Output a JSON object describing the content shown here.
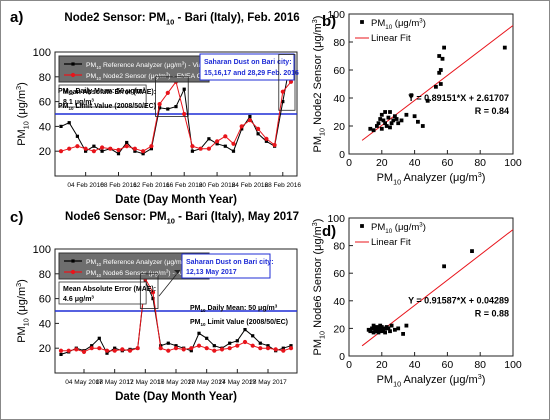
{
  "chart_data": [
    {
      "panel": "a)",
      "type": "line",
      "title": "Node2 Sensor: PM10 - Bari (Italy), Feb. 2016",
      "xlabel": "Date (Day Month Year)",
      "ylabel": "PM10 (μg/m3)",
      "ylim": [
        0,
        100
      ],
      "yticks": [
        20,
        40,
        60,
        80,
        100
      ],
      "x": [
        "01 Feb 2016",
        "02 Feb 2016",
        "03 Feb 2016",
        "04 Feb 2016",
        "05 Feb 2016",
        "06 Feb 2016",
        "07 Feb 2016",
        "08 Feb 2016",
        "09 Feb 2016",
        "10 Feb 2016",
        "11 Feb 2016",
        "12 Feb 2016",
        "13 Feb 2016",
        "14 Feb 2016",
        "15 Feb 2016",
        "16 Feb 2016",
        "17 Feb 2016",
        "18 Feb 2016",
        "19 Feb 2016",
        "20 Feb 2016",
        "21 Feb 2016",
        "22 Feb 2016",
        "23 Feb 2016",
        "24 Feb 2016",
        "25 Feb 2016",
        "26 Feb 2016",
        "27 Feb 2016",
        "28 Feb 2016",
        "29 Feb 2016"
      ],
      "xtick_labels": [
        "04 Feb 2016",
        "08 Feb 2016",
        "12 Feb 2016",
        "16 Feb 2016",
        "20 Feb 2016",
        "24 Feb 2016",
        "28 Feb 2016"
      ],
      "xtick_index": [
        3,
        7,
        11,
        15,
        19,
        23,
        27
      ],
      "series": [
        {
          "name": "PM10 Reference Analyzer (μg/m3) - Via Caldarola, Bari",
          "color": "#000000",
          "values": [
            40,
            43,
            32,
            20,
            24,
            20,
            22,
            18,
            27,
            20,
            18,
            22,
            55,
            54,
            56,
            70,
            20,
            22,
            30,
            26,
            24,
            20,
            38,
            48,
            34,
            28,
            24,
            60,
            95
          ]
        },
        {
          "name": "PM10 Node2 Sensor (μg/m3) - ENEA Office, Bari",
          "color": "#e8141b",
          "values": [
            20,
            22,
            24,
            22,
            20,
            23,
            22,
            21,
            24,
            22,
            20,
            24,
            58,
            67,
            76,
            50,
            24,
            22,
            22,
            28,
            32,
            26,
            40,
            45,
            38,
            30,
            25,
            68,
            76
          ]
        }
      ],
      "mae_label": "Mean Absolute Error (MAE):",
      "mae_value": "8.1 μg/m3",
      "daily_mean_label": "PM10 Daily Mean: 50 μg/m3",
      "limit_label": "PM10 Limit Value (2008/50/EC)",
      "limit_value": 50,
      "dust_note": "Saharan Dust on Bari city: 15,16,17 and 28,29 Feb. 2016"
    },
    {
      "panel": "b)",
      "type": "scatter",
      "xlabel": "PM10 Analyzer (μg/m3)",
      "ylabel": "PM10 Node2 Sensor (μg/m3)",
      "xlim": [
        0,
        100
      ],
      "ylim": [
        0,
        100
      ],
      "xticks": [
        0,
        20,
        40,
        60,
        80,
        100
      ],
      "yticks": [
        0,
        20,
        40,
        60,
        80,
        100
      ],
      "points_name": "PM10 (μg/m3)",
      "fit_name": "Linear Fit",
      "points": [
        [
          13,
          18
        ],
        [
          15,
          17
        ],
        [
          17,
          20
        ],
        [
          18,
          22
        ],
        [
          19,
          25
        ],
        [
          20,
          28
        ],
        [
          20,
          18
        ],
        [
          21,
          24
        ],
        [
          22,
          30
        ],
        [
          22,
          22
        ],
        [
          23,
          20
        ],
        [
          24,
          26
        ],
        [
          25,
          30
        ],
        [
          25,
          19
        ],
        [
          26,
          22
        ],
        [
          27,
          24
        ],
        [
          28,
          27
        ],
        [
          29,
          25
        ],
        [
          30,
          22
        ],
        [
          32,
          24
        ],
        [
          35,
          28
        ],
        [
          38,
          42
        ],
        [
          40,
          27
        ],
        [
          42,
          23
        ],
        [
          45,
          20
        ],
        [
          48,
          38
        ],
        [
          53,
          48
        ],
        [
          55,
          70
        ],
        [
          55,
          58
        ],
        [
          56,
          60
        ],
        [
          56,
          50
        ],
        [
          57,
          68
        ],
        [
          58,
          76
        ],
        [
          95,
          76
        ]
      ],
      "fit": {
        "slope": 0.89151,
        "intercept": 2.61707
      },
      "equation": "Y = 0.89151*X + 2.61707",
      "r_label": "R = 0.84"
    },
    {
      "panel": "c)",
      "type": "line",
      "title": "Node6 Sensor: PM10 - Bari (Italy), May 2017",
      "xlabel": "Date (Day Month Year)",
      "ylabel": "PM10 (μg/m3)",
      "ylim": [
        0,
        100
      ],
      "yticks": [
        20,
        40,
        60,
        80,
        100
      ],
      "x": [
        "01 May 2017",
        "02 May 2017",
        "03 May 2017",
        "04 May 2017",
        "05 May 2017",
        "06 May 2017",
        "07 May 2017",
        "08 May 2017",
        "09 May 2017",
        "10 May 2017",
        "11 May 2017",
        "12 May 2017",
        "13 May 2017",
        "14 May 2017",
        "15 May 2017",
        "16 May 2017",
        "17 May 2017",
        "18 May 2017",
        "19 May 2017",
        "20 May 2017",
        "21 May 2017",
        "22 May 2017",
        "23 May 2017",
        "24 May 2017",
        "25 May 2017",
        "26 May 2017",
        "27 May 2017",
        "28 May 2017",
        "29 May 2017",
        "30 May 2017",
        "31 May 2017"
      ],
      "xtick_labels": [
        "04 May 2017",
        "08 May 2017",
        "12 May 2017",
        "16 May 2017",
        "20 May 2017",
        "24 May 2017",
        "28 May 2017"
      ],
      "xtick_index": [
        3,
        7,
        11,
        15,
        19,
        23,
        27
      ],
      "series": [
        {
          "name": "PM10 Reference Analyzer (μg/m3) - EN2 Modugno, Bari",
          "color": "#000000",
          "values": [
            15,
            17,
            20,
            18,
            22,
            28,
            16,
            20,
            18,
            19,
            20,
            74,
            60,
            22,
            24,
            22,
            20,
            18,
            32,
            28,
            22,
            20,
            24,
            26,
            35,
            30,
            24,
            22,
            18,
            20,
            22
          ]
        },
        {
          "name": "PM10 Node6 Sensor (μg/m3) - AIRPORT, Bari",
          "color": "#e8141b",
          "values": [
            18,
            18,
            19,
            17,
            20,
            20,
            18,
            18,
            19,
            18,
            20,
            76,
            65,
            20,
            18,
            20,
            19,
            20,
            22,
            20,
            18,
            19,
            20,
            22,
            25,
            22,
            20,
            20,
            19,
            18,
            20
          ]
        }
      ],
      "mae_label": "Mean Absolute Error (MAE):",
      "mae_value": "4.6 μg/m3",
      "daily_mean_label": "PM10 Daily Mean: 50 μg/m3",
      "limit_label": "PM10 Limit Value (2008/50/EC)",
      "limit_value": 50,
      "dust_note": "Saharan Dust on Bari city: 12,13 May 2017"
    },
    {
      "panel": "d)",
      "type": "scatter",
      "xlabel": "PM10 Analyzer (μg/m3)",
      "ylabel": "PM10 Node6 Sensor (μg/m3)",
      "xlim": [
        0,
        100
      ],
      "ylim": [
        0,
        100
      ],
      "xticks": [
        0,
        20,
        40,
        60,
        80,
        100
      ],
      "yticks": [
        0,
        20,
        40,
        60,
        80,
        100
      ],
      "points_name": "PM10 (μg/m3)",
      "fit_name": "Linear Fit",
      "points": [
        [
          12,
          19
        ],
        [
          13,
          18
        ],
        [
          14,
          20
        ],
        [
          15,
          17
        ],
        [
          15,
          22
        ],
        [
          16,
          18
        ],
        [
          16,
          20
        ],
        [
          17,
          21
        ],
        [
          18,
          19
        ],
        [
          18,
          17
        ],
        [
          19,
          20
        ],
        [
          19,
          22
        ],
        [
          20,
          18
        ],
        [
          20,
          21
        ],
        [
          21,
          19
        ],
        [
          22,
          20
        ],
        [
          22,
          17
        ],
        [
          23,
          21
        ],
        [
          24,
          20
        ],
        [
          25,
          18
        ],
        [
          26,
          22
        ],
        [
          28,
          19
        ],
        [
          30,
          20
        ],
        [
          33,
          16
        ],
        [
          35,
          22
        ],
        [
          58,
          65
        ],
        [
          75,
          76
        ]
      ],
      "fit": {
        "slope": 0.91587,
        "intercept": 0.04289
      },
      "equation": "Y = 0.91587*X + 0.04289",
      "r_label": "R = 0.88"
    }
  ]
}
